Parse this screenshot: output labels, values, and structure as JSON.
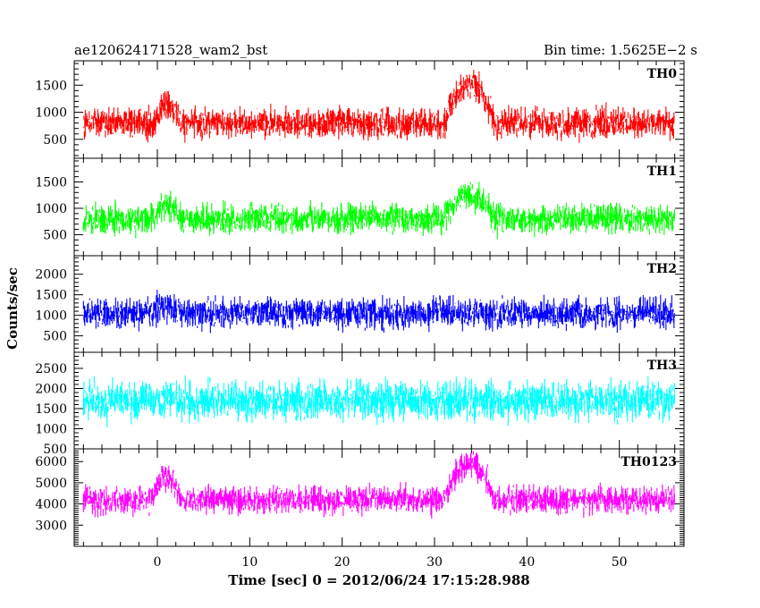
{
  "chart_data": {
    "type": "line",
    "title_left": "ae120624171528_wam2_bst",
    "title_right": "Bin time: 1.5625E−2 s",
    "xlabel": "Time [sec] 0 = 2012/06/24 17:15:28.988",
    "ylabel": "Counts/sec",
    "xlim": [
      -9,
      57
    ],
    "x_data_range": [
      -8,
      56
    ],
    "bin_time": 0.015625,
    "x_ticks": [
      0,
      10,
      20,
      30,
      40,
      50
    ],
    "x_tick_labels": [
      "0",
      "10",
      "20",
      "30",
      "40",
      "50"
    ],
    "grid": false,
    "panels": [
      {
        "name": "TH0",
        "color": "#ff0000",
        "ylim": [
          150,
          1950
        ],
        "y_ticks": [
          500,
          1000,
          1500
        ],
        "y_tick_labels": [
          "500",
          "1000",
          "1500"
        ],
        "baseline": 800,
        "spread": 320,
        "events": [
          {
            "t0": 0,
            "t1": 2,
            "peak": 1100
          },
          {
            "t0": 31.5,
            "t1": 36,
            "peak": 1500
          }
        ]
      },
      {
        "name": "TH1",
        "color": "#00ff00",
        "ylim": [
          100,
          1950
        ],
        "y_ticks": [
          500,
          1000,
          1500
        ],
        "y_tick_labels": [
          "500",
          "1000",
          "1500"
        ],
        "baseline": 800,
        "spread": 320,
        "events": [
          {
            "t0": 0,
            "t1": 2,
            "peak": 1050
          },
          {
            "t0": 31.5,
            "t1": 36,
            "peak": 1250
          }
        ]
      },
      {
        "name": "TH2",
        "color": "#0000ff",
        "ylim": [
          100,
          2450
        ],
        "y_ticks": [
          500,
          1000,
          1500,
          2000
        ],
        "y_tick_labels": [
          "500",
          "1000",
          "1500",
          "2000"
        ],
        "baseline": 1050,
        "spread": 420,
        "events": [
          {
            "t0": 0,
            "t1": 2,
            "peak": 1200
          }
        ]
      },
      {
        "name": "TH3",
        "color": "#00ffff",
        "ylim": [
          500,
          2900
        ],
        "y_ticks": [
          500,
          1000,
          1500,
          2000,
          2500
        ],
        "y_tick_labels": [
          "500",
          "1000",
          "1500",
          "2000",
          "2500"
        ],
        "baseline": 1700,
        "spread": 550,
        "events": []
      },
      {
        "name": "TH0123",
        "color": "#ff00ff",
        "ylim": [
          2000,
          6600
        ],
        "y_ticks": [
          3000,
          4000,
          5000,
          6000
        ],
        "y_tick_labels": [
          "3000",
          "4000",
          "5000",
          "6000"
        ],
        "baseline": 4200,
        "spread": 750,
        "events": [
          {
            "t0": 0,
            "t1": 2,
            "peak": 5200
          },
          {
            "t0": 31.5,
            "t1": 36,
            "peak": 5900
          }
        ]
      }
    ]
  }
}
